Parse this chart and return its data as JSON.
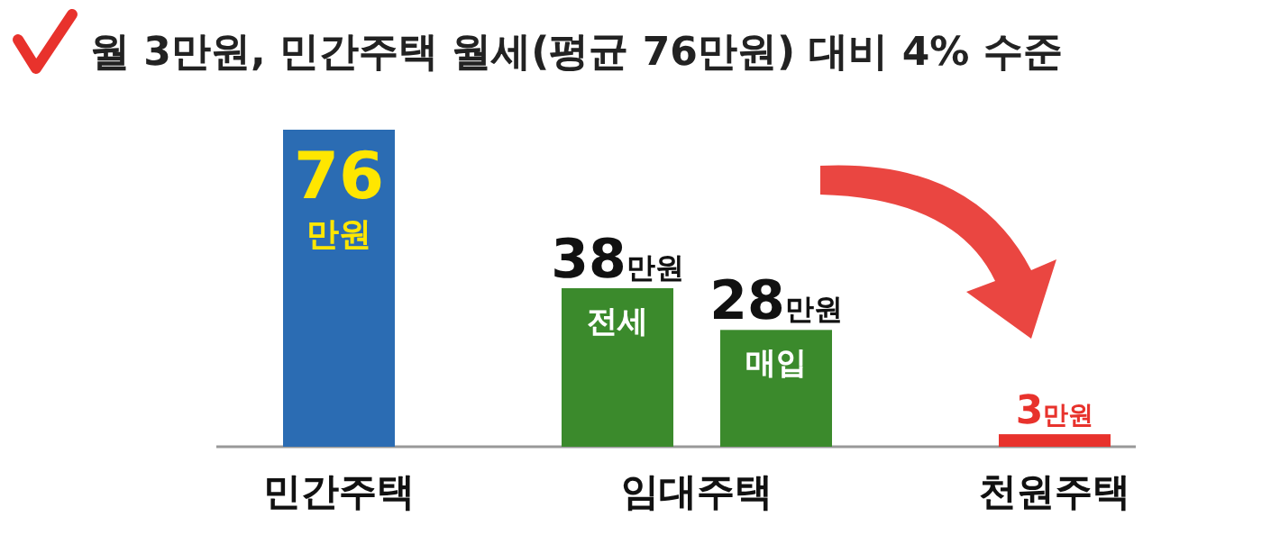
{
  "chart_data": {
    "type": "bar",
    "title": "월 3만원, 민간주택 월세(평균 76만원) 대비 4% 수준",
    "categories": [
      "민간주택",
      "임대주택",
      "천원주택"
    ],
    "series": [
      {
        "colors": [
          "#2b6cb3",
          "#3b8a2c",
          "#e8322c"
        ],
        "values": [
          76,
          38,
          3
        ],
        "value_labels": [
          "76만원",
          "38만원",
          "3만원"
        ]
      },
      {
        "color": "#3b8a2c",
        "values": [
          null,
          28,
          null
        ],
        "value_labels": [
          null,
          "28만원",
          null
        ]
      }
    ],
    "annotations": [
      "전세",
      "매입"
    ]
  }
}
